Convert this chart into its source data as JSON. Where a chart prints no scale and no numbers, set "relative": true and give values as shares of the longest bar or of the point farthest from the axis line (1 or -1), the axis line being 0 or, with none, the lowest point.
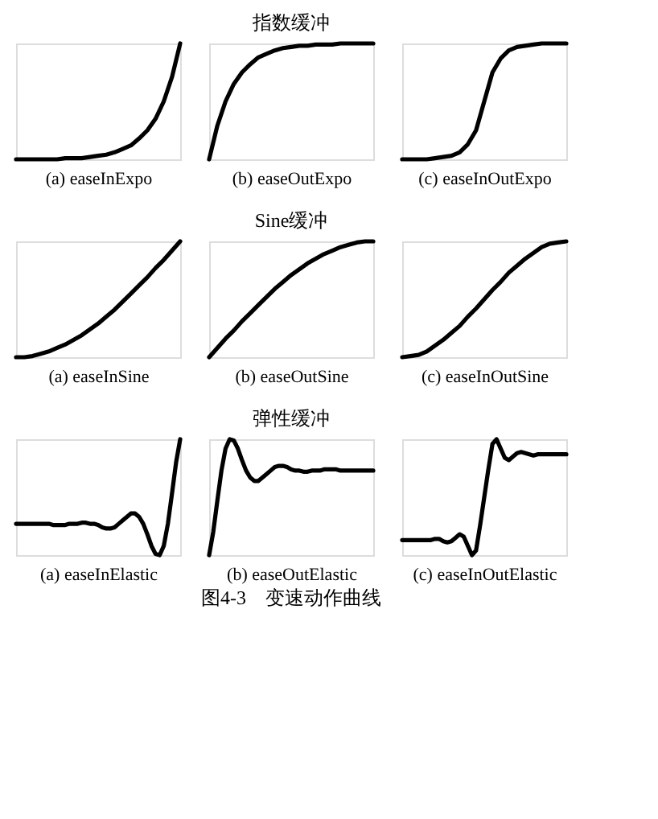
{
  "chart_data": [
    {
      "type": "line",
      "relative": true,
      "xlabel": "(a) easeInExpo",
      "categories": [
        null,
        null,
        null,
        null,
        null,
        null,
        null,
        null,
        null,
        null,
        null,
        null,
        null,
        null,
        null,
        null,
        null,
        null,
        null,
        null,
        null
      ],
      "series": [
        {
          "color": "#000000",
          "values": [
            0,
            0,
            0,
            0,
            0,
            0,
            0.01,
            0.01,
            0.01,
            0.02,
            0.03,
            0.04,
            0.06,
            0.09,
            0.12,
            0.18,
            0.25,
            0.35,
            0.5,
            0.71,
            1
          ]
        }
      ]
    },
    {
      "type": "line",
      "relative": true,
      "title": "指数缓冲",
      "xlabel": "(b) easeOutExpo",
      "categories": [
        null,
        null,
        null,
        null,
        null,
        null,
        null,
        null,
        null,
        null,
        null,
        null,
        null,
        null,
        null,
        null,
        null,
        null,
        null,
        null,
        null
      ],
      "series": [
        {
          "color": "#000000",
          "values": [
            0,
            0.29,
            0.5,
            0.65,
            0.75,
            0.82,
            0.88,
            0.91,
            0.94,
            0.96,
            0.97,
            0.98,
            0.98,
            0.99,
            0.99,
            0.99,
            1,
            1,
            1,
            1,
            1
          ]
        }
      ]
    },
    {
      "type": "line",
      "relative": true,
      "xlabel": "(c) easeInOutExpo",
      "categories": [
        null,
        null,
        null,
        null,
        null,
        null,
        null,
        null,
        null,
        null,
        null,
        null,
        null,
        null,
        null,
        null,
        null,
        null,
        null,
        null,
        null
      ],
      "series": [
        {
          "color": "#000000",
          "values": [
            0,
            0,
            0,
            0,
            0.01,
            0.02,
            0.03,
            0.06,
            0.13,
            0.25,
            0.5,
            0.75,
            0.87,
            0.94,
            0.97,
            0.98,
            0.99,
            1,
            1,
            1,
            1
          ]
        }
      ]
    },
    {
      "type": "line",
      "relative": true,
      "xlabel": "(a) easeInSine",
      "categories": [
        null,
        null,
        null,
        null,
        null,
        null,
        null,
        null,
        null,
        null,
        null,
        null,
        null,
        null,
        null,
        null,
        null,
        null,
        null,
        null,
        null
      ],
      "series": [
        {
          "color": "#000000",
          "values": [
            0,
            0,
            0.01,
            0.03,
            0.05,
            0.08,
            0.11,
            0.15,
            0.19,
            0.24,
            0.29,
            0.35,
            0.41,
            0.48,
            0.55,
            0.62,
            0.69,
            0.77,
            0.84,
            0.92,
            1
          ]
        }
      ]
    },
    {
      "type": "line",
      "relative": true,
      "title": "Sine缓冲",
      "xlabel": "(b) easeOutSine",
      "categories": [
        null,
        null,
        null,
        null,
        null,
        null,
        null,
        null,
        null,
        null,
        null,
        null,
        null,
        null,
        null,
        null,
        null,
        null,
        null,
        null,
        null
      ],
      "series": [
        {
          "color": "#000000",
          "values": [
            0,
            0.08,
            0.16,
            0.23,
            0.31,
            0.38,
            0.45,
            0.52,
            0.59,
            0.65,
            0.71,
            0.76,
            0.81,
            0.85,
            0.89,
            0.92,
            0.95,
            0.97,
            0.99,
            1,
            1
          ]
        }
      ]
    },
    {
      "type": "line",
      "relative": true,
      "xlabel": "(c) easeInOutSine",
      "categories": [
        null,
        null,
        null,
        null,
        null,
        null,
        null,
        null,
        null,
        null,
        null,
        null,
        null,
        null,
        null,
        null,
        null,
        null,
        null,
        null,
        null
      ],
      "series": [
        {
          "color": "#000000",
          "values": [
            0,
            0.01,
            0.02,
            0.05,
            0.1,
            0.15,
            0.21,
            0.27,
            0.35,
            0.42,
            0.5,
            0.58,
            0.65,
            0.73,
            0.79,
            0.85,
            0.9,
            0.95,
            0.98,
            0.99,
            1
          ]
        }
      ]
    },
    {
      "type": "line",
      "relative": true,
      "xlabel": "(a) easeInElastic",
      "categories": [
        null,
        null,
        null,
        null,
        null,
        null,
        null,
        null,
        null,
        null,
        null,
        null,
        null,
        null,
        null,
        null,
        null,
        null,
        null,
        null,
        null,
        null,
        null,
        null,
        null,
        null,
        null,
        null,
        null,
        null,
        null,
        null,
        null,
        null,
        null,
        null,
        null,
        null,
        null,
        null,
        null
      ],
      "series": [
        {
          "color": "#000000",
          "values": [
            0.27,
            0.27,
            0.27,
            0.27,
            0.27,
            0.27,
            0.27,
            0.27,
            0.27,
            0.26,
            0.26,
            0.26,
            0.26,
            0.27,
            0.27,
            0.27,
            0.28,
            0.28,
            0.27,
            0.27,
            0.26,
            0.24,
            0.23,
            0.23,
            0.24,
            0.27,
            0.3,
            0.33,
            0.36,
            0.36,
            0.33,
            0.27,
            0.18,
            0.08,
            0.01,
            0,
            0.08,
            0.27,
            0.53,
            0.8,
            1
          ]
        }
      ]
    },
    {
      "type": "line",
      "relative": true,
      "title": "弹性缓冲",
      "xlabel": "(b) easeOutElastic",
      "categories": [
        null,
        null,
        null,
        null,
        null,
        null,
        null,
        null,
        null,
        null,
        null,
        null,
        null,
        null,
        null,
        null,
        null,
        null,
        null,
        null,
        null,
        null,
        null,
        null,
        null,
        null,
        null,
        null,
        null,
        null,
        null,
        null,
        null,
        null,
        null,
        null,
        null,
        null,
        null,
        null,
        null
      ],
      "series": [
        {
          "color": "#000000",
          "values": [
            0,
            0.2,
            0.47,
            0.73,
            0.92,
            1,
            0.99,
            0.92,
            0.82,
            0.73,
            0.67,
            0.64,
            0.64,
            0.67,
            0.7,
            0.73,
            0.76,
            0.77,
            0.77,
            0.76,
            0.74,
            0.73,
            0.73,
            0.72,
            0.72,
            0.73,
            0.73,
            0.73,
            0.74,
            0.74,
            0.74,
            0.74,
            0.73,
            0.73,
            0.73,
            0.73,
            0.73,
            0.73,
            0.73,
            0.73,
            0.73
          ]
        }
      ]
    },
    {
      "type": "line",
      "relative": true,
      "xlabel": "(c) easeInOutElastic",
      "annotations": [
        "图4-3　变速动作曲线"
      ],
      "categories": [
        null,
        null,
        null,
        null,
        null,
        null,
        null,
        null,
        null,
        null,
        null,
        null,
        null,
        null,
        null,
        null,
        null,
        null,
        null,
        null,
        null,
        null,
        null,
        null,
        null,
        null,
        null,
        null,
        null,
        null,
        null,
        null,
        null,
        null,
        null,
        null,
        null,
        null,
        null,
        null,
        null
      ],
      "series": [
        {
          "color": "#000000",
          "values": [
            0.13,
            0.13,
            0.13,
            0.13,
            0.13,
            0.13,
            0.13,
            0.13,
            0.14,
            0.14,
            0.12,
            0.11,
            0.12,
            0.15,
            0.18,
            0.16,
            0.08,
            0,
            0.04,
            0.26,
            0.5,
            0.74,
            0.96,
            1,
            0.92,
            0.84,
            0.82,
            0.85,
            0.88,
            0.89,
            0.88,
            0.87,
            0.86,
            0.87,
            0.87,
            0.87,
            0.87,
            0.87,
            0.87,
            0.87,
            0.87
          ]
        }
      ]
    }
  ]
}
